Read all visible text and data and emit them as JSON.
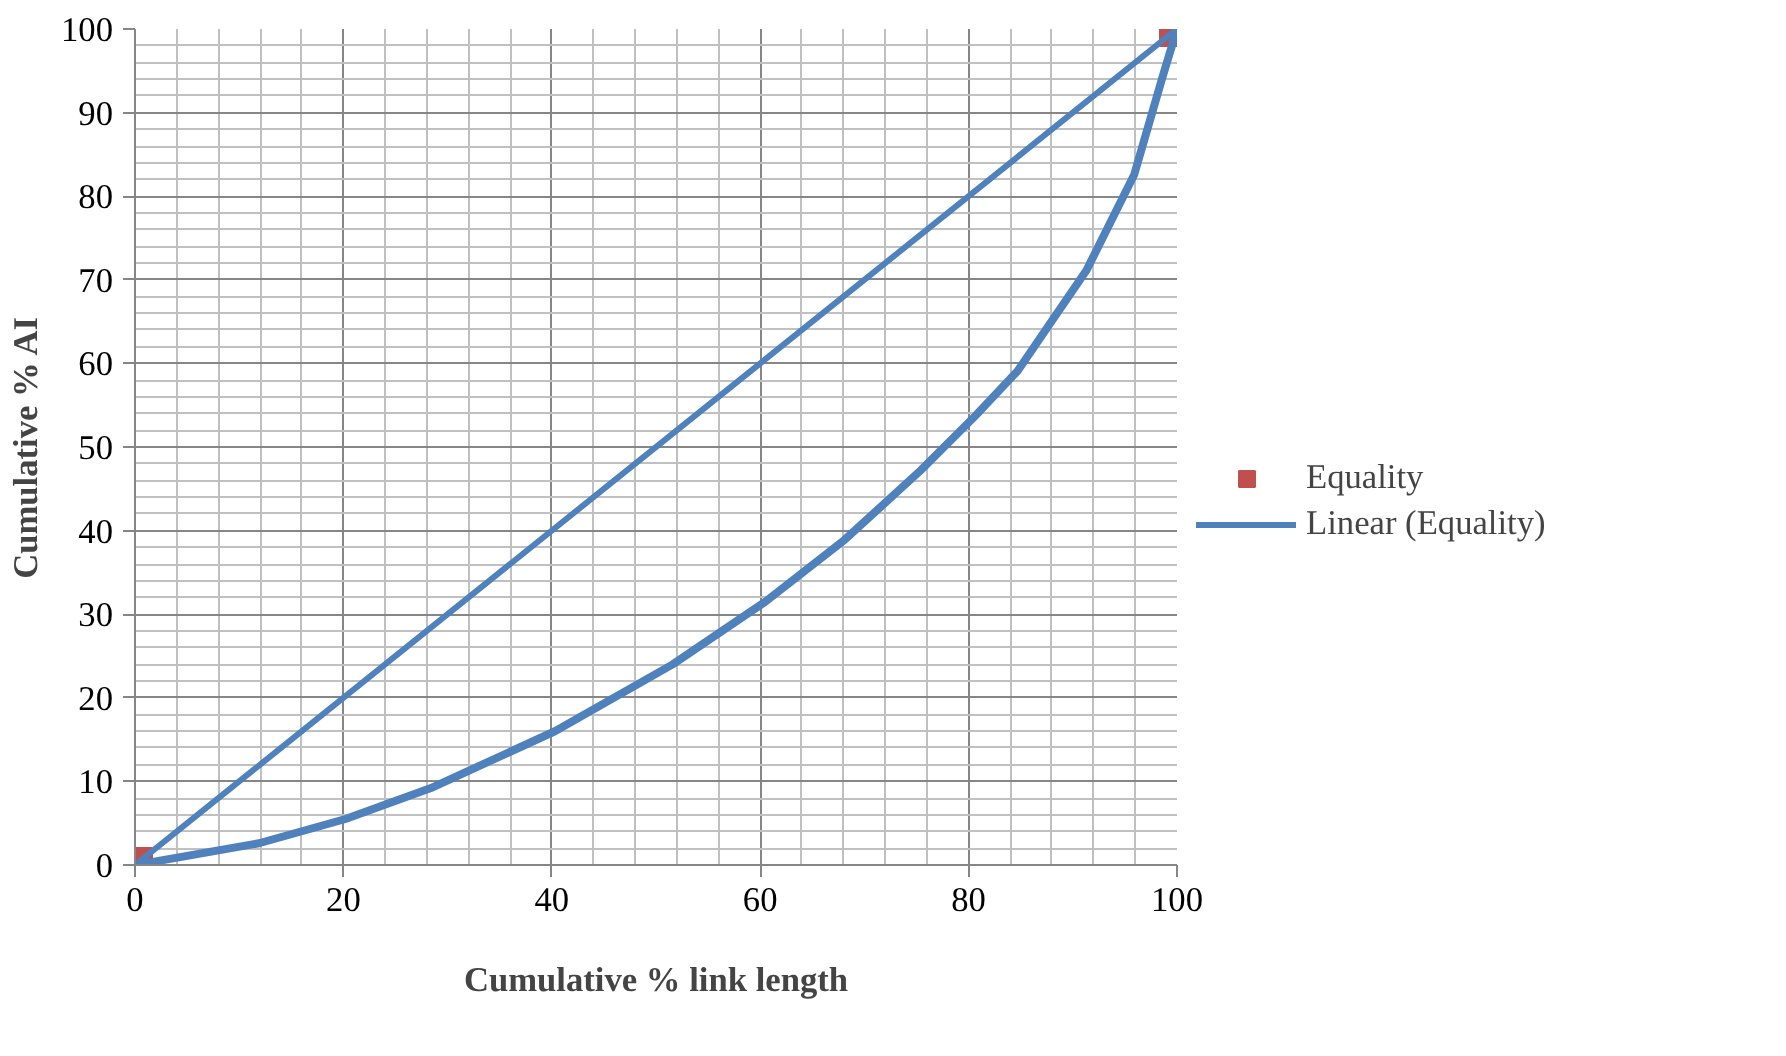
{
  "chart_data": {
    "type": "line",
    "xlabel": "Cumulative % link length",
    "ylabel": "Cumulative % AI",
    "xlim": [
      0,
      100
    ],
    "ylim": [
      0,
      100
    ],
    "xticks": [
      0,
      20,
      40,
      60,
      80,
      100
    ],
    "yticks": [
      0,
      10,
      20,
      30,
      40,
      50,
      60,
      70,
      80,
      90,
      100
    ],
    "grid": true,
    "legend": "right",
    "series": [
      {
        "name": "Equality",
        "type": "scatter",
        "marker": "square",
        "color": "#c0504d",
        "x": [
          0,
          100
        ],
        "values": [
          0,
          100
        ]
      },
      {
        "name": "Linear (Equality)",
        "color": "#4f81bd",
        "x": [
          0,
          100
        ],
        "values": [
          0,
          100
        ]
      },
      {
        "color": "#4f81bd",
        "x": [
          0,
          11.9,
          20.2,
          28.4,
          40.3,
          51.6,
          60.5,
          68.1,
          75.4,
          80.7,
          84.7,
          91.3,
          95.9,
          98.6,
          100
        ],
        "values": [
          0,
          2.6,
          5.5,
          9.2,
          16.0,
          24.0,
          31.5,
          38.9,
          47.2,
          53.8,
          59.1,
          71.1,
          82.6,
          94.2,
          100
        ]
      }
    ]
  }
}
